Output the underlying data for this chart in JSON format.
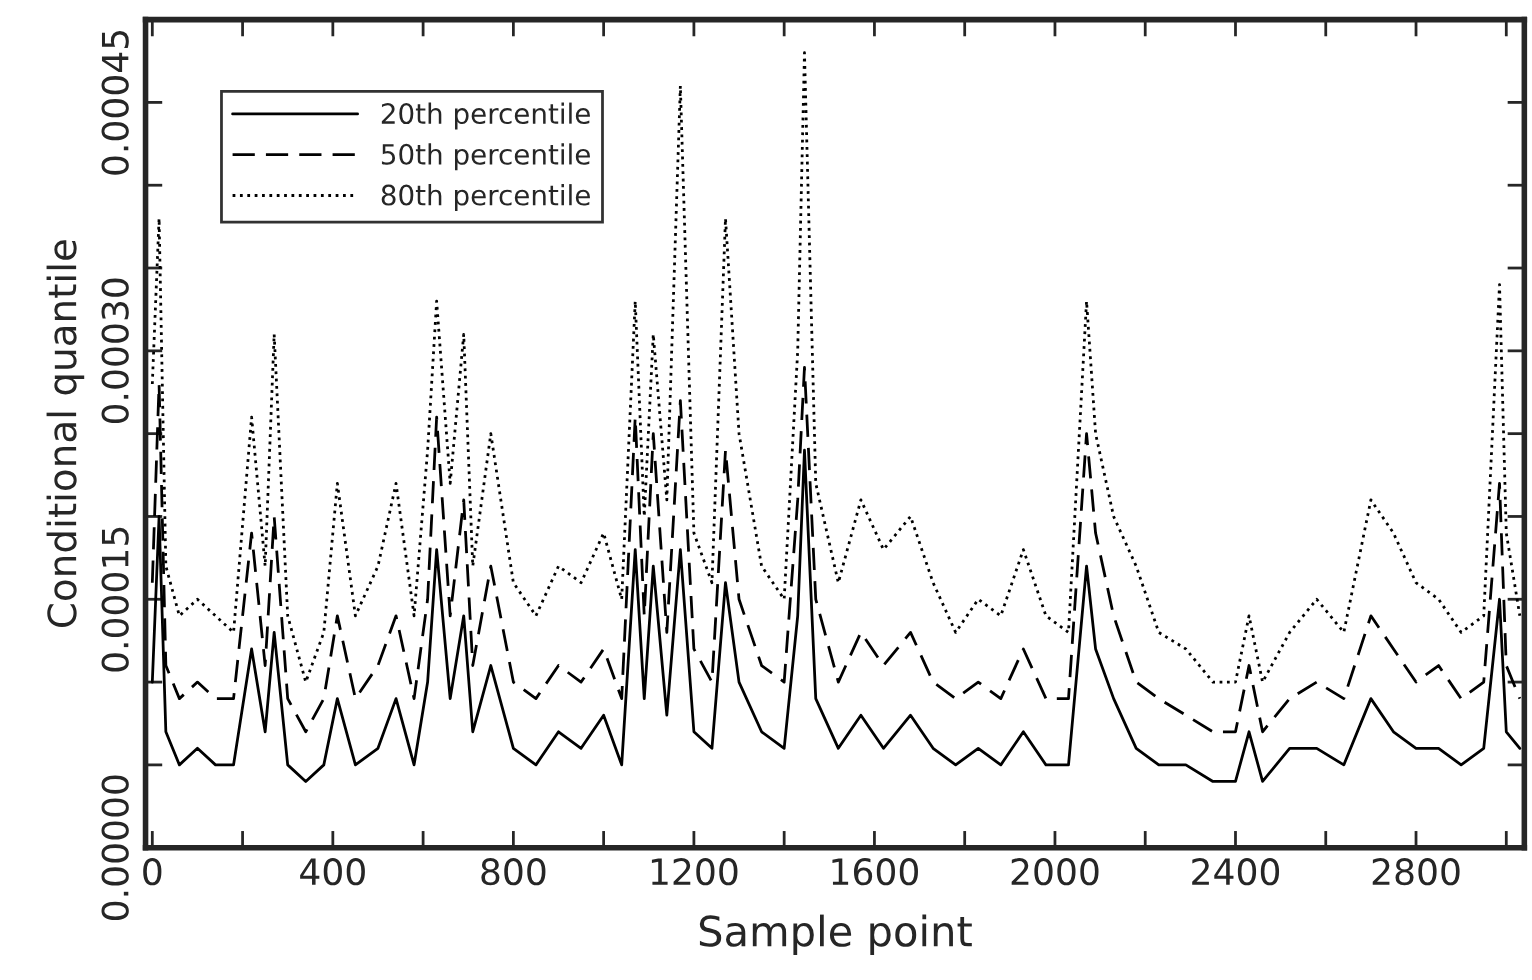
{
  "chart_data": {
    "type": "line",
    "xlabel": "Sample point",
    "ylabel": "Conditional quantile",
    "xlim": [
      -15,
      3040
    ],
    "ylim": [
      0,
      0.0005
    ],
    "xticks": [
      0,
      {
        "value": 200,
        "label": null
      },
      400,
      {
        "value": 600,
        "label": null
      },
      800,
      {
        "value": 1000,
        "label": null
      },
      1200,
      {
        "value": 1400,
        "label": null
      },
      1600,
      {
        "value": 1800,
        "label": null
      },
      2000,
      {
        "value": 2200,
        "label": null
      },
      2400,
      {
        "value": 2600,
        "label": null
      },
      2800,
      {
        "value": 3000,
        "label": null
      }
    ],
    "yticks": [
      {
        "value": 0,
        "label": "0.00000"
      },
      {
        "value": 5e-05,
        "label": null
      },
      {
        "value": 0.0001,
        "label": null
      },
      {
        "value": 0.00015,
        "label": "0.00015"
      },
      {
        "value": 0.0002,
        "label": null
      },
      {
        "value": 0.00025,
        "label": null
      },
      {
        "value": 0.0003,
        "label": "0.00030"
      },
      {
        "value": 0.00035,
        "label": null
      },
      {
        "value": 0.0004,
        "label": null
      },
      {
        "value": 0.00045,
        "label": "0.00045"
      }
    ],
    "legend": "top left",
    "grid": false,
    "marker": "none",
    "x": [
      0,
      15,
      30,
      60,
      100,
      140,
      180,
      220,
      250,
      270,
      300,
      340,
      380,
      410,
      450,
      500,
      540,
      580,
      610,
      630,
      660,
      690,
      710,
      750,
      800,
      850,
      900,
      950,
      1000,
      1040,
      1070,
      1090,
      1110,
      1140,
      1170,
      1200,
      1240,
      1270,
      1300,
      1350,
      1400,
      1430,
      1445,
      1470,
      1520,
      1570,
      1620,
      1680,
      1730,
      1780,
      1830,
      1880,
      1930,
      1980,
      2030,
      2070,
      2090,
      2130,
      2180,
      2230,
      2290,
      2350,
      2400,
      2430,
      2460,
      2520,
      2580,
      2640,
      2700,
      2750,
      2800,
      2850,
      2900,
      2950,
      2985,
      3000,
      3030
    ],
    "series": [
      {
        "name": "20th percentile",
        "color": "#000000",
        "line_style": "solid",
        "values": [
          0.0001,
          0.0002,
          7e-05,
          5e-05,
          6e-05,
          5e-05,
          5e-05,
          0.00012,
          7e-05,
          0.00013,
          5e-05,
          4e-05,
          5e-05,
          9e-05,
          5e-05,
          6e-05,
          9e-05,
          5e-05,
          0.0001,
          0.00018,
          9e-05,
          0.00014,
          7e-05,
          0.00011,
          6e-05,
          5e-05,
          7e-05,
          6e-05,
          8e-05,
          5e-05,
          0.00018,
          9e-05,
          0.00017,
          8e-05,
          0.00018,
          7e-05,
          6e-05,
          0.00016,
          0.0001,
          7e-05,
          6e-05,
          0.00014,
          0.00024,
          9e-05,
          6e-05,
          8e-05,
          6e-05,
          8e-05,
          6e-05,
          5e-05,
          6e-05,
          5e-05,
          7e-05,
          5e-05,
          5e-05,
          0.00017,
          0.00012,
          9e-05,
          6e-05,
          5e-05,
          5e-05,
          4e-05,
          4e-05,
          7e-05,
          4e-05,
          6e-05,
          6e-05,
          5e-05,
          9e-05,
          7e-05,
          6e-05,
          6e-05,
          5e-05,
          6e-05,
          0.00015,
          7e-05,
          6e-05
        ]
      },
      {
        "name": "50th percentile",
        "color": "#000000",
        "line_style": "dashed",
        "values": [
          0.00016,
          0.00028,
          0.00011,
          9e-05,
          0.0001,
          9e-05,
          9e-05,
          0.00019,
          0.00011,
          0.0002,
          9e-05,
          7e-05,
          9e-05,
          0.00014,
          9e-05,
          0.00011,
          0.00014,
          9e-05,
          0.00015,
          0.00026,
          0.00014,
          0.00021,
          0.00011,
          0.00017,
          0.0001,
          9e-05,
          0.00011,
          0.0001,
          0.00012,
          9e-05,
          0.00026,
          0.00014,
          0.00025,
          0.00013,
          0.00027,
          0.00012,
          0.0001,
          0.00024,
          0.00015,
          0.00011,
          0.0001,
          0.00021,
          0.00029,
          0.00015,
          0.0001,
          0.00013,
          0.00011,
          0.00013,
          0.0001,
          9e-05,
          0.0001,
          9e-05,
          0.00012,
          9e-05,
          9e-05,
          0.00025,
          0.00019,
          0.00014,
          0.0001,
          9e-05,
          8e-05,
          7e-05,
          7e-05,
          0.00011,
          7e-05,
          9e-05,
          0.0001,
          9e-05,
          0.00014,
          0.00012,
          0.0001,
          0.00011,
          9e-05,
          0.0001,
          0.00022,
          0.00011,
          9e-05
        ]
      },
      {
        "name": "80th percentile",
        "color": "#000000",
        "line_style": "dotted",
        "values": [
          0.00028,
          0.00038,
          0.00017,
          0.00014,
          0.00015,
          0.00014,
          0.00013,
          0.00026,
          0.00017,
          0.00031,
          0.00014,
          0.0001,
          0.00013,
          0.00022,
          0.00014,
          0.00017,
          0.00022,
          0.00014,
          0.00024,
          0.00033,
          0.00022,
          0.00031,
          0.00017,
          0.00025,
          0.00016,
          0.00014,
          0.00017,
          0.00016,
          0.00019,
          0.00015,
          0.00033,
          0.0002,
          0.00031,
          0.00021,
          0.00046,
          0.00019,
          0.00016,
          0.00038,
          0.00025,
          0.00017,
          0.00015,
          0.0003,
          0.00048,
          0.00022,
          0.00016,
          0.00021,
          0.00018,
          0.0002,
          0.00016,
          0.00013,
          0.00015,
          0.00014,
          0.00018,
          0.00014,
          0.00013,
          0.00033,
          0.00025,
          0.0002,
          0.00017,
          0.00013,
          0.00012,
          0.0001,
          0.0001,
          0.00014,
          0.0001,
          0.00013,
          0.00015,
          0.00013,
          0.00021,
          0.00019,
          0.00016,
          0.00015,
          0.00013,
          0.00014,
          0.00034,
          0.00019,
          0.00014
        ]
      }
    ]
  }
}
